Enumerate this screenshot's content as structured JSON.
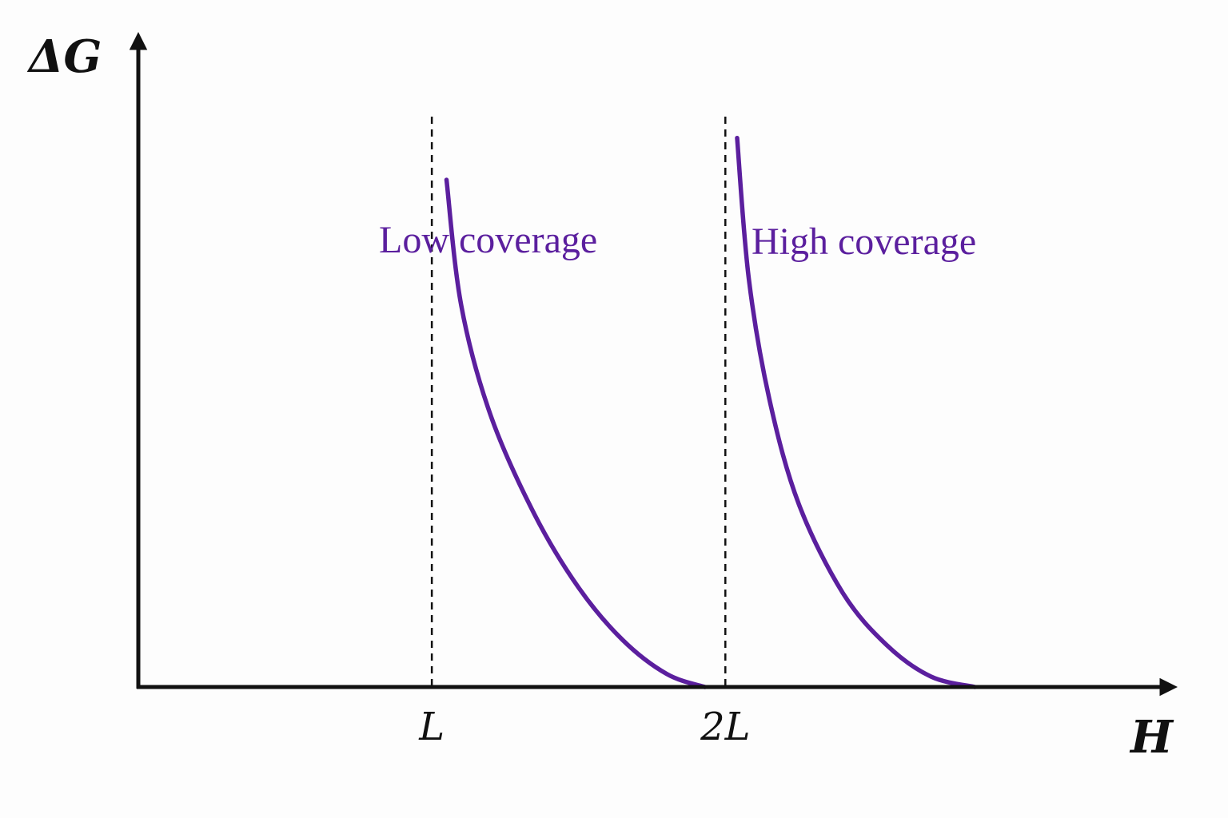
{
  "chart_data": {
    "type": "line",
    "title": "",
    "xlabel": "H",
    "ylabel": "ΔG",
    "x_ticks": [
      {
        "value": 1,
        "label": "L"
      },
      {
        "value": 2,
        "label": "2L"
      }
    ],
    "xlim": [
      0.0,
      3.5
    ],
    "ylim": [
      0.0,
      1.1
    ],
    "grid": false,
    "curve_color": "#5b1f9e",
    "axis_color": "#111111",
    "reference_lines": [
      {
        "x": 1,
        "style": "dashed"
      },
      {
        "x": 2,
        "style": "dashed"
      }
    ],
    "series": [
      {
        "name": "Low coverage",
        "x": [
          1.05,
          1.1,
          1.2,
          1.35,
          1.5,
          1.65,
          1.8,
          1.93
        ],
        "y": [
          0.97,
          0.73,
          0.52,
          0.33,
          0.19,
          0.09,
          0.025,
          0.0
        ]
      },
      {
        "name": "High coverage",
        "x": [
          2.04,
          2.08,
          2.15,
          2.25,
          2.4,
          2.55,
          2.7,
          2.85
        ],
        "y": [
          1.05,
          0.78,
          0.55,
          0.35,
          0.18,
          0.08,
          0.02,
          0.0
        ]
      }
    ]
  }
}
